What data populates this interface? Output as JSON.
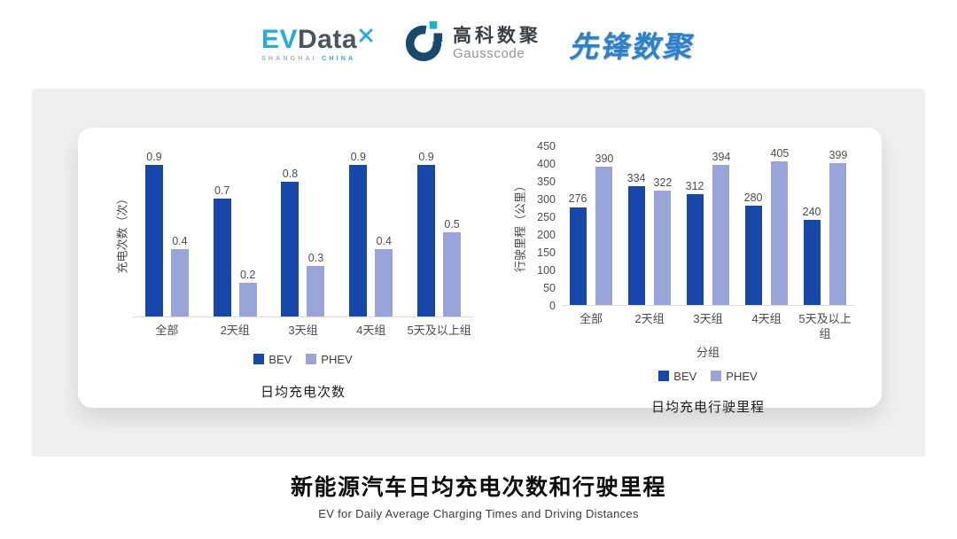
{
  "header": {
    "evdata": {
      "ev": "EV",
      "data": "Data",
      "tagline_left": "SHANGHAI",
      "tagline_right": "CHINA"
    },
    "gausscode": {
      "name_cn": "高科数聚",
      "name_en": "Gausscode"
    },
    "pioneer": {
      "name": "先锋数聚"
    }
  },
  "colors": {
    "bev": "#1747A8",
    "phev": "#99A5D8",
    "evdata_blue": "#29ABE2",
    "evdata_dark": "#4A5560",
    "gausscode_navy": "#174A6E",
    "gausscode_teal": "#1AB5BE",
    "pioneer_blue": "#2E80C8",
    "card_gray": "#F0F0F0"
  },
  "chart_data": [
    {
      "type": "bar",
      "title": "日均充电次数",
      "ylabel": "充电次数（次）",
      "xlabel": "",
      "categories": [
        "全部",
        "2天组",
        "3天组",
        "4天组",
        "5天及以上组"
      ],
      "series": [
        {
          "name": "BEV",
          "color": "#1747A8",
          "values": [
            0.9,
            0.7,
            0.8,
            0.9,
            0.9
          ]
        },
        {
          "name": "PHEV",
          "color": "#99A5D8",
          "values": [
            0.4,
            0.2,
            0.3,
            0.4,
            0.5
          ]
        }
      ],
      "ylim": [
        0,
        1.0
      ],
      "y_ticks": [],
      "grid": false,
      "data_labels": true,
      "legend_position": "bottom"
    },
    {
      "type": "bar",
      "title": "日均充电行驶里程",
      "ylabel": "行驶里程（公里）",
      "xlabel": "分组",
      "categories": [
        "全部",
        "2天组",
        "3天组",
        "4天组",
        "5天及以上组"
      ],
      "series": [
        {
          "name": "BEV",
          "color": "#1747A8",
          "values": [
            276,
            334,
            312,
            280,
            240
          ]
        },
        {
          "name": "PHEV",
          "color": "#99A5D8",
          "values": [
            390,
            322,
            394,
            405,
            399
          ]
        }
      ],
      "ylim": [
        0,
        450
      ],
      "y_ticks": [
        450,
        400,
        350,
        300,
        250,
        200,
        150,
        100,
        50,
        0
      ],
      "grid": false,
      "data_labels": true,
      "legend_position": "bottom"
    }
  ],
  "footer": {
    "title": "新能源汽车日均充电次数和行驶里程",
    "subtitle": "EV for Daily Average Charging Times and Driving Distances"
  }
}
